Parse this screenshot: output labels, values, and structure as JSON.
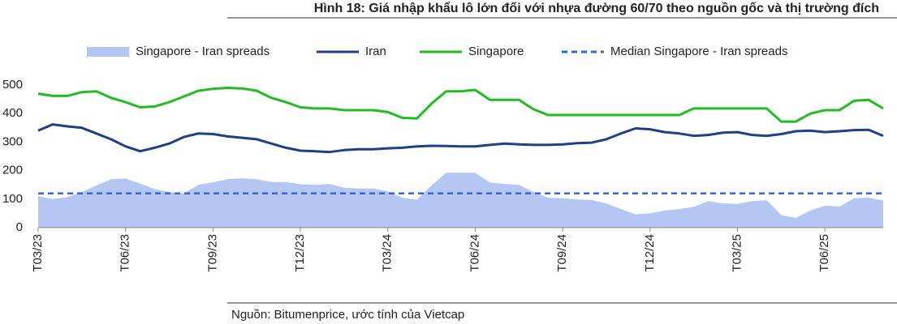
{
  "chart_data": {
    "type": "line",
    "title": "Hình 18: Giá nhập khẩu lô lớn đối với nhựa đường 60/70 theo nguồn gốc và thị trường đích",
    "source": "Nguồn: Bitumenprice, ước tính của Vietcap",
    "categories": [
      "T03/23",
      null,
      null,
      null,
      null,
      null,
      "T06/23",
      null,
      null,
      null,
      null,
      null,
      "T09/23",
      null,
      null,
      null,
      null,
      null,
      "T12/23",
      null,
      null,
      null,
      null,
      null,
      "T03/24",
      null,
      null,
      null,
      null,
      null,
      "T06/24",
      null,
      null,
      null,
      null,
      null,
      "T09/24",
      null,
      null,
      null,
      null,
      null,
      "T12/24",
      null,
      null,
      null,
      null,
      null,
      "T03/25",
      null,
      null,
      null,
      null,
      null,
      "T06/25",
      null,
      null,
      null,
      null
    ],
    "series": [
      {
        "name": "Singapore - Iran spreads",
        "kind": "area",
        "color": "#b4c7f2",
        "values": [
          110,
          100,
          107,
          125,
          148,
          170,
          172,
          154,
          135,
          125,
          120,
          150,
          159,
          170,
          173,
          170,
          160,
          160,
          152,
          150,
          153,
          140,
          137,
          137,
          127,
          105,
          98,
          148,
          192,
          193,
          192,
          158,
          153,
          150,
          125,
          105,
          103,
          99,
          97,
          85,
          65,
          47,
          50,
          60,
          65,
          73,
          93,
          85,
          83,
          93,
          96,
          44,
          34,
          60,
          77,
          74,
          103,
          105,
          95
        ]
      },
      {
        "name": "Iran",
        "kind": "line",
        "color": "#1f3f86",
        "values": [
          340,
          362,
          355,
          350,
          330,
          310,
          285,
          268,
          280,
          295,
          318,
          330,
          328,
          320,
          315,
          310,
          295,
          280,
          270,
          268,
          265,
          272,
          275,
          275,
          278,
          280,
          285,
          287,
          286,
          285,
          285,
          290,
          295,
          292,
          290,
          290,
          292,
          296,
          298,
          310,
          330,
          348,
          345,
          335,
          330,
          322,
          325,
          333,
          335,
          325,
          322,
          328,
          338,
          340,
          335,
          338,
          342,
          343,
          322
        ]
      },
      {
        "name": "Singapore",
        "kind": "line",
        "color": "#22bb22",
        "values": [
          470,
          462,
          462,
          475,
          478,
          455,
          440,
          422,
          425,
          440,
          460,
          480,
          487,
          490,
          488,
          480,
          455,
          440,
          422,
          418,
          418,
          412,
          412,
          412,
          405,
          385,
          383,
          435,
          478,
          478,
          483,
          448,
          448,
          448,
          415,
          395,
          395,
          395,
          395,
          395,
          395,
          395,
          395,
          395,
          395,
          418,
          418,
          418,
          418,
          418,
          418,
          372,
          372,
          400,
          412,
          412,
          445,
          448,
          418
        ]
      }
    ],
    "reference_line": {
      "name": "Median Singapore - Iran spreads",
      "value": 120,
      "color": "#3366dd",
      "dashed": true
    },
    "ylim": [
      0,
      500
    ],
    "yticks": [
      0,
      100,
      200,
      300,
      400,
      500
    ]
  }
}
